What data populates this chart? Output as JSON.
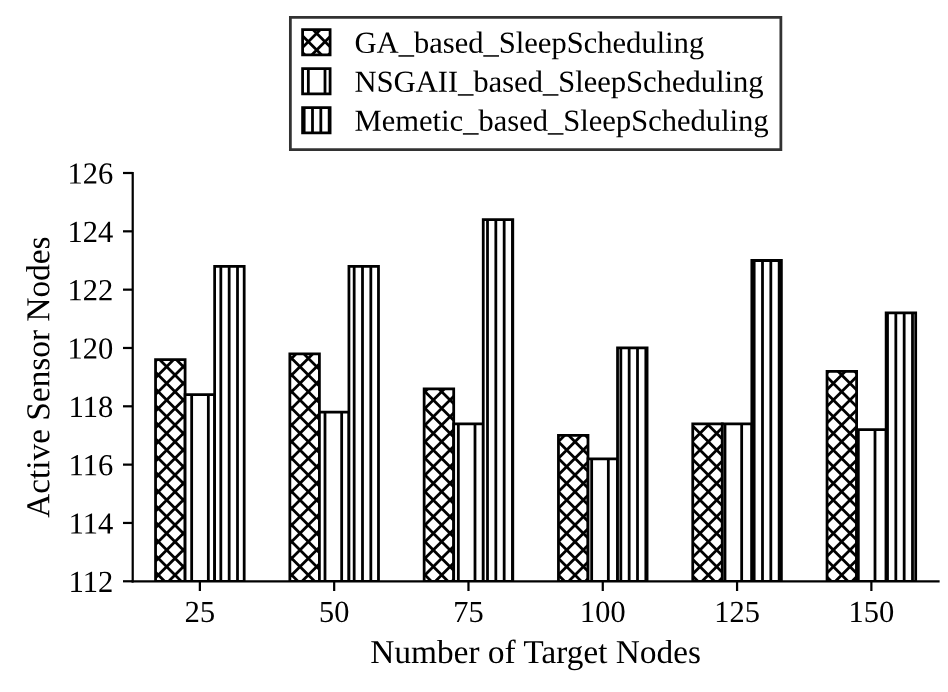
{
  "chart_data": {
    "type": "bar",
    "xlabel": "Number of Target Nodes",
    "ylabel": "Active Sensor Nodes",
    "categories": [
      "25",
      "50",
      "75",
      "100",
      "125",
      "150"
    ],
    "series": [
      {
        "name": "GA_based_SleepScheduling",
        "color": "#000000",
        "values": [
          119.6,
          119.8,
          118.6,
          117.0,
          117.4,
          119.2
        ]
      },
      {
        "name": "NSGAII_based_SleepScheduling",
        "color": "#000000",
        "values": [
          118.4,
          117.8,
          117.4,
          116.2,
          117.4,
          117.2
        ]
      },
      {
        "name": "Memetic_based_SleepScheduling",
        "color": "#000000",
        "values": [
          122.8,
          122.8,
          124.4,
          120.0,
          123.0,
          121.2
        ]
      }
    ],
    "ylim": [
      112,
      126
    ],
    "yticks": [
      112,
      114,
      116,
      118,
      120,
      122,
      124,
      126
    ],
    "grid": false,
    "legend": "top"
  }
}
